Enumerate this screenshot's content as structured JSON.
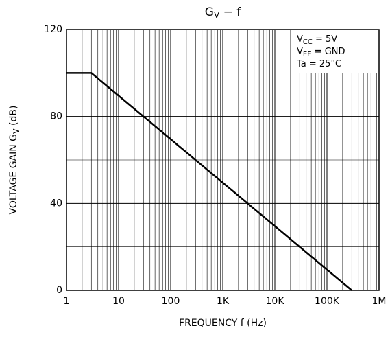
{
  "chart_data": {
    "type": "line",
    "title": {
      "main": "G",
      "sub": "V",
      "rest": " − f"
    },
    "xlabel": "FREQUENCY   f   (Hz)",
    "ylabel": {
      "main": "VOLTAGE GAIN   G",
      "sub": "V",
      "rest": "   (dB)"
    },
    "annotations": [
      {
        "main": "V",
        "sub": "CC",
        "rest": " = 5V"
      },
      {
        "main": "V",
        "sub": "EE",
        "rest": " = GND"
      },
      {
        "main": "Ta = 25°C",
        "sub": "",
        "rest": ""
      }
    ],
    "xscale": "log",
    "xlim": [
      1,
      1000000
    ],
    "xticks": [
      {
        "value": 1,
        "label": "1"
      },
      {
        "value": 10,
        "label": "10"
      },
      {
        "value": 100,
        "label": "100"
      },
      {
        "value": 1000,
        "label": "1K"
      },
      {
        "value": 10000,
        "label": "10K"
      },
      {
        "value": 100000,
        "label": "100K"
      },
      {
        "value": 1000000,
        "label": "1M"
      }
    ],
    "xminor": [
      2,
      3,
      4,
      5,
      6,
      7,
      8,
      9
    ],
    "ylim": [
      0,
      120
    ],
    "yticks": [
      0,
      40,
      80,
      120
    ],
    "yminor": [
      20,
      60,
      100
    ],
    "grid": true,
    "series": [
      {
        "name": "Gv",
        "color": "#000000",
        "x": [
          1,
          3,
          300000
        ],
        "values": [
          100,
          100,
          0
        ]
      }
    ]
  }
}
